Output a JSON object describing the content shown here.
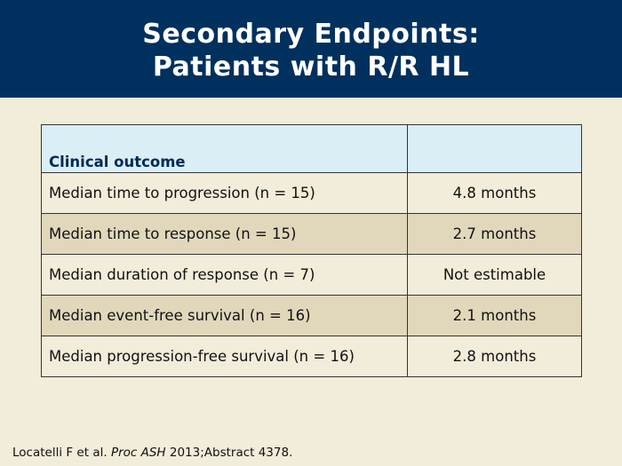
{
  "title": {
    "line1": "Secondary Endpoints:",
    "line2": "Patients with R/R HL"
  },
  "table": {
    "header": {
      "col1": "Clinical outcome",
      "col2": ""
    },
    "rows": [
      {
        "outcome": "Median time to progression (n = 15)",
        "value": "4.8 months"
      },
      {
        "outcome": "Median time to response (n = 15)",
        "value": "2.7 months"
      },
      {
        "outcome": "Median duration of response (n = 7)",
        "value": "Not estimable"
      },
      {
        "outcome": "Median event-free survival (n = 16)",
        "value": "2.1 months"
      },
      {
        "outcome": "Median progression-free survival (n = 16)",
        "value": "2.8 months"
      }
    ]
  },
  "footnote": {
    "authors": "Locatelli F et al. ",
    "journal": "Proc ASH",
    "rest": " 2013;Abstract 4378."
  },
  "colors": {
    "title_bar": "#00305e",
    "background": "#f2ecda",
    "header_row": "#daeef6",
    "alt_row": "#e1d8bc"
  }
}
